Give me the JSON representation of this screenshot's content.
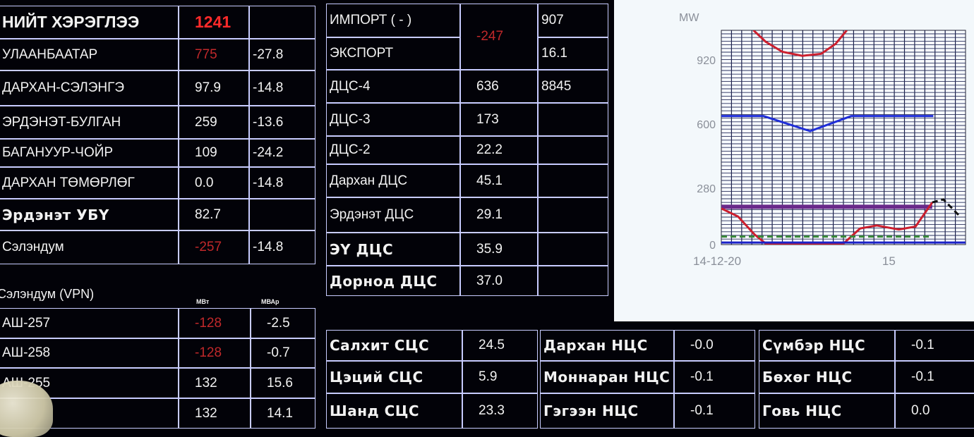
{
  "left_table": {
    "header": {
      "label": "НИЙТ ХЭРЭГЛЭЭ",
      "value": "1241",
      "value_color": "#ff2a2a"
    },
    "rows": [
      {
        "label": "УЛААНБААТАР",
        "value": "775",
        "q": "-27.8",
        "value_color": "#c0282a"
      },
      {
        "label": "ДАРХАН-СЭЛЭНГЭ",
        "value": "97.9",
        "q": "-14.8"
      },
      {
        "label": "ЭРДЭНЭТ-БУЛГАН",
        "value": "259",
        "q": "-13.6"
      },
      {
        "label": "БАГАНУУР-ЧОЙР",
        "value": "109",
        "q": "-24.2"
      },
      {
        "label": "ДАРХАН ТӨМӨРЛӨГ",
        "value": "0.0",
        "q": "-14.8"
      },
      {
        "label": "Эрдэнэт УБҮ",
        "value": "82.7",
        "q": "",
        "bold": true
      },
      {
        "label": "Сэлэндум",
        "value": "-257",
        "q": "-14.8",
        "value_color": "#c0282a"
      }
    ]
  },
  "vpn_table": {
    "title": "Сэлэндум (VPN)",
    "unit_p": "МВт",
    "unit_q": "МВАр",
    "rows": [
      {
        "label": "АШ-257",
        "value": "-128",
        "q": "-2.5",
        "value_color": "#c0282a"
      },
      {
        "label": "АШ-258",
        "value": "-128",
        "q": "-0.7",
        "value_color": "#c0282a"
      },
      {
        "label": "АШ-255",
        "value": "132",
        "q": "15.6"
      },
      {
        "label": "",
        "value": "132",
        "q": "14.1"
      }
    ]
  },
  "middle_table": {
    "import_label": "ИМПОРТ ( - )",
    "export_label": "ЭКСПОРТ",
    "exchange_value": "-247",
    "exchange_color": "#c0282a",
    "import_right": "907",
    "export_right": "16.1",
    "rows": [
      {
        "label": "ДЦС-4",
        "value": "636",
        "right": "8845"
      },
      {
        "label": "ДЦС-3",
        "value": "173",
        "right": ""
      },
      {
        "label": "ДЦС-2",
        "value": "22.2",
        "right": ""
      },
      {
        "label": "Дархан ДЦС",
        "value": "45.1",
        "right": ""
      },
      {
        "label": "Эрдэнэт ДЦС",
        "value": "29.1",
        "right": ""
      },
      {
        "label": "ЭҮ ДЦС",
        "value": "35.9",
        "right": "",
        "bold": true
      },
      {
        "label": "Дорнод ДЦС",
        "value": "37.0",
        "right": "",
        "bold": true
      }
    ]
  },
  "solar_table": {
    "rows": [
      {
        "label": "Салхит СЦС",
        "value": "24.5"
      },
      {
        "label": "Цэций СЦС",
        "value": "5.9"
      },
      {
        "label": "Шанд СЦС",
        "value": "23.3"
      }
    ]
  },
  "solar_table_2": {
    "rows": [
      {
        "label": "Дархан НЦС",
        "value": "-0.0"
      },
      {
        "label": "Моннаран НЦС",
        "value": "-0.1"
      },
      {
        "label": "Гэгээн НЦС",
        "value": "-0.1"
      }
    ]
  },
  "solar_table_3": {
    "rows": [
      {
        "label": "Сүмбэр НЦС",
        "value": "-0.1"
      },
      {
        "label": "Бөхөг НЦС",
        "value": "-0.1"
      },
      {
        "label": "Говь НЦС",
        "value": "0.0"
      }
    ]
  },
  "chart_data": {
    "type": "line",
    "ylabel": "MW",
    "ylim": [
      0,
      1067
    ],
    "yticks": [
      "0",
      "280",
      "600",
      "920"
    ],
    "xlim": [
      0,
      22
    ],
    "xticks": [
      {
        "x": 0,
        "label": "14-12-20"
      },
      {
        "x": 15,
        "label": "15"
      }
    ],
    "grid": true,
    "series": [
      {
        "color": "#cc1f2e",
        "style": "solid",
        "points": [
          [
            2.9,
            1067
          ],
          [
            4,
            1010
          ],
          [
            5.5,
            960
          ],
          [
            7.3,
            940
          ],
          [
            9,
            950
          ],
          [
            10.3,
            1000
          ],
          [
            11.3,
            1067
          ]
        ]
      },
      {
        "color": "#1f2ed8",
        "style": "solid",
        "points": [
          [
            0,
            640
          ],
          [
            3.8,
            640
          ],
          [
            8,
            565
          ],
          [
            11.7,
            640
          ],
          [
            19.1,
            640
          ]
        ]
      },
      {
        "color": "#6a2a8a",
        "style": "solid",
        "points": [
          [
            0,
            188
          ],
          [
            19,
            188
          ]
        ]
      },
      {
        "color": "#cc1f2e",
        "style": "solid",
        "points": [
          [
            0,
            180
          ],
          [
            1.5,
            140
          ],
          [
            3,
            50
          ],
          [
            4,
            5
          ],
          [
            5,
            0
          ],
          [
            11,
            5
          ],
          [
            12.5,
            80
          ],
          [
            14,
            95
          ],
          [
            16,
            75
          ],
          [
            17.5,
            90
          ],
          [
            19,
            210
          ]
        ]
      },
      {
        "color": "#111111",
        "style": "dashed",
        "points": [
          [
            19,
            210
          ],
          [
            20,
            225
          ],
          [
            21.5,
            140
          ]
        ]
      },
      {
        "color": "#3a8a3a",
        "style": "dashed",
        "points": [
          [
            0,
            40
          ],
          [
            19,
            40
          ]
        ]
      },
      {
        "color": "#1a22c8",
        "style": "solid",
        "points": [
          [
            0,
            10
          ],
          [
            22,
            10
          ]
        ]
      }
    ]
  }
}
